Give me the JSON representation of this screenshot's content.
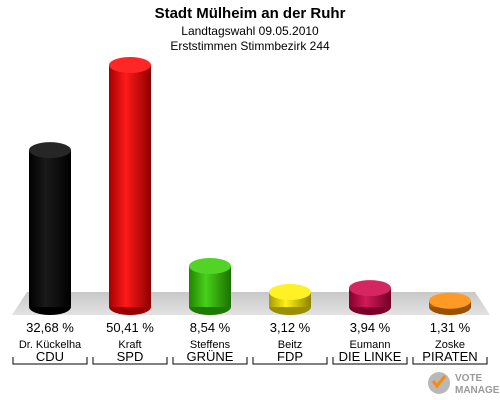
{
  "header": {
    "title": "Stadt Mülheim an der Ruhr",
    "subtitle": "Landtagswahl 09.05.2010",
    "subtitle2": "Erststimmen Stimmbezirk 244"
  },
  "watermark": {
    "line1": "VOTE",
    "line2": "MANAGER"
  },
  "chart_data": {
    "type": "bar",
    "title": "Stadt Mülheim an der Ruhr",
    "categories": [
      "CDU",
      "SPD",
      "GRÜNE",
      "FDP",
      "DIE LINKE",
      "PIRATEN"
    ],
    "candidates": [
      "Dr. Kückelha",
      "Kraft",
      "Steffens",
      "Beitz",
      "Eumann",
      "Zoske"
    ],
    "values": [
      32.68,
      50.41,
      8.54,
      3.12,
      3.94,
      1.31
    ],
    "value_labels": [
      "32,68 %",
      "50,41 %",
      "8,54 %",
      "3,12 %",
      "3,94 %",
      "1,31 %"
    ],
    "colors": [
      "#000000",
      "#ff0000",
      "#33cc00",
      "#ffee00",
      "#cc0044",
      "#ff8800"
    ],
    "ylim": [
      0,
      50.41
    ],
    "grid": false,
    "legend": "none"
  }
}
